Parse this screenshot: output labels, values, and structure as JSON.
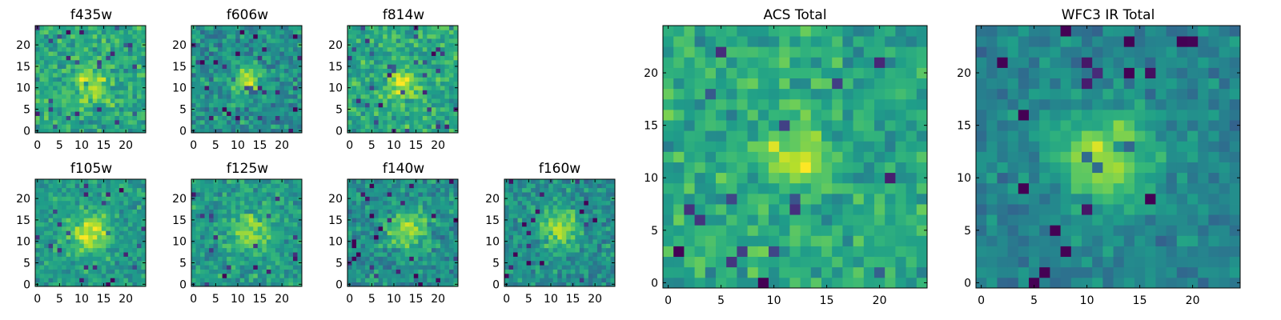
{
  "figure": {
    "background": "#ffffff",
    "colormap": "viridis",
    "grid_size": 25
  },
  "chart_data": [
    {
      "type": "heatmap",
      "title": "f435w",
      "xticks": [
        0,
        5,
        10,
        15,
        20
      ],
      "yticks": [
        0,
        5,
        10,
        15,
        20
      ],
      "xlim": [
        0,
        25
      ],
      "ylim": [
        0,
        25
      ],
      "peak": [
        12,
        11
      ],
      "peak_sigma": 3,
      "peak_amp": 0.25,
      "noise": 0.22,
      "base": 0.6,
      "seed": 11
    },
    {
      "type": "heatmap",
      "title": "f606w",
      "xticks": [
        0,
        5,
        10,
        15,
        20
      ],
      "yticks": [
        0,
        5,
        10,
        15,
        20
      ],
      "xlim": [
        0,
        25
      ],
      "ylim": [
        0,
        25
      ],
      "peak": [
        12,
        12
      ],
      "peak_sigma": 2.5,
      "peak_amp": 0.35,
      "noise": 0.22,
      "base": 0.5,
      "seed": 23
    },
    {
      "type": "heatmap",
      "title": "f814w",
      "xticks": [
        0,
        5,
        10,
        15,
        20
      ],
      "yticks": [
        0,
        5,
        10,
        15,
        20
      ],
      "xlim": [
        0,
        25
      ],
      "ylim": [
        0,
        25
      ],
      "peak": [
        12,
        11
      ],
      "peak_sigma": 2.5,
      "peak_amp": 0.3,
      "noise": 0.22,
      "base": 0.6,
      "seed": 37
    },
    {
      "type": "heatmap",
      "title": "f105w",
      "xticks": [
        0,
        5,
        10,
        15,
        20
      ],
      "yticks": [
        0,
        5,
        10,
        15,
        20
      ],
      "xlim": [
        0,
        25
      ],
      "ylim": [
        0,
        25
      ],
      "peak": [
        12,
        12
      ],
      "peak_sigma": 3,
      "peak_amp": 0.4,
      "noise": 0.18,
      "base": 0.55,
      "seed": 41
    },
    {
      "type": "heatmap",
      "title": "f125w",
      "xticks": [
        0,
        5,
        10,
        15,
        20
      ],
      "yticks": [
        0,
        5,
        10,
        15,
        20
      ],
      "xlim": [
        0,
        25
      ],
      "ylim": [
        0,
        25
      ],
      "peak": [
        13,
        12
      ],
      "peak_sigma": 3,
      "peak_amp": 0.3,
      "noise": 0.2,
      "base": 0.55,
      "seed": 53
    },
    {
      "type": "heatmap",
      "title": "f140w",
      "xticks": [
        0,
        5,
        10,
        15,
        20
      ],
      "yticks": [
        0,
        5,
        10,
        15,
        20
      ],
      "xlim": [
        0,
        25
      ],
      "ylim": [
        0,
        25
      ],
      "peak": [
        13,
        13
      ],
      "peak_sigma": 3,
      "peak_amp": 0.4,
      "noise": 0.2,
      "base": 0.5,
      "seed": 67
    },
    {
      "type": "heatmap",
      "title": "f160w",
      "xticks": [
        0,
        5,
        10,
        15,
        20
      ],
      "yticks": [
        0,
        5,
        10,
        15,
        20
      ],
      "xlim": [
        0,
        25
      ],
      "ylim": [
        0,
        25
      ],
      "peak": [
        12,
        13
      ],
      "peak_sigma": 3,
      "peak_amp": 0.35,
      "noise": 0.2,
      "base": 0.5,
      "seed": 79
    },
    {
      "type": "heatmap",
      "title": "ACS Total",
      "xticks": [
        0,
        5,
        10,
        15,
        20
      ],
      "yticks": [
        0,
        5,
        10,
        15,
        20
      ],
      "xlim": [
        0,
        25
      ],
      "ylim": [
        0,
        25
      ],
      "peak": [
        12,
        12
      ],
      "peak_sigma": 1.8,
      "peak_amp": 0.35,
      "noise": 0.2,
      "base": 0.6,
      "seed": 97
    },
    {
      "type": "heatmap",
      "title": "WFC3 IR Total",
      "xticks": [
        0,
        5,
        10,
        15,
        20
      ],
      "yticks": [
        0,
        5,
        10,
        15,
        20
      ],
      "xlim": [
        0,
        25
      ],
      "ylim": [
        0,
        25
      ],
      "peak": [
        12,
        12
      ],
      "peak_sigma": 3,
      "peak_amp": 0.45,
      "noise": 0.15,
      "base": 0.45,
      "seed": 113
    }
  ]
}
